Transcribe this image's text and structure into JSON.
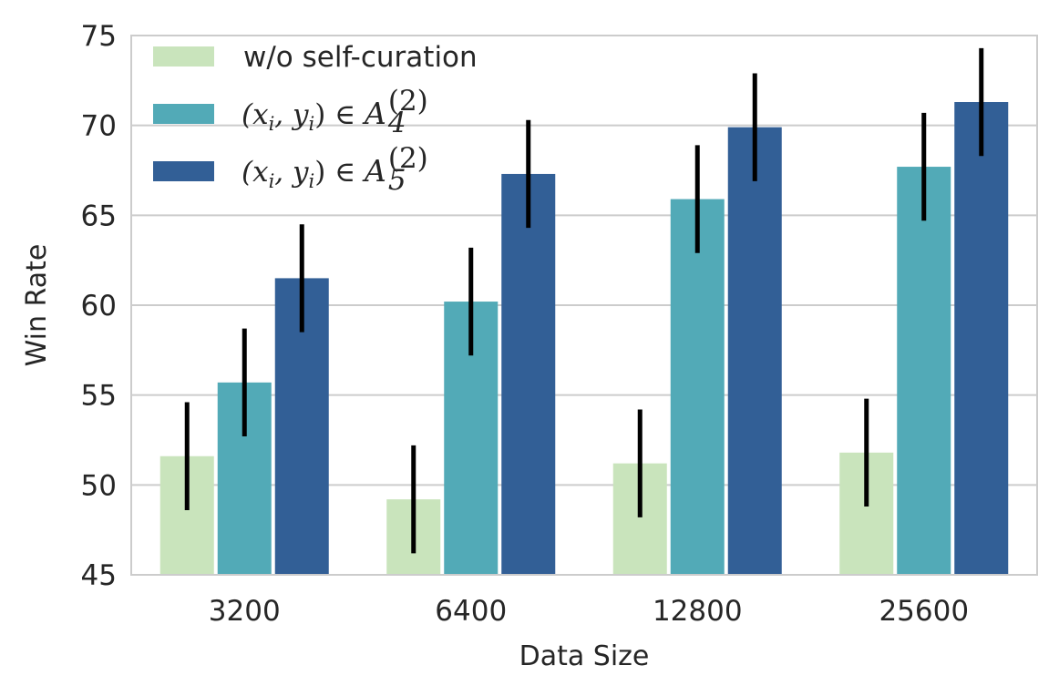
{
  "chart_data": {
    "type": "bar",
    "title": "",
    "xlabel": "Data Size",
    "ylabel": "Win Rate",
    "categories": [
      "3200",
      "6400",
      "12800",
      "25600"
    ],
    "ylim": [
      45,
      75
    ],
    "yticks": [
      45,
      50,
      55,
      60,
      65,
      70,
      75
    ],
    "grid": "horizontal",
    "legend_placement": "top-left",
    "series": [
      {
        "name": "w/o self-curation",
        "color": "#c9e4bc",
        "values": [
          51.6,
          49.2,
          51.2,
          51.8
        ],
        "error": [
          3.0,
          3.0,
          3.0,
          3.0
        ]
      },
      {
        "name": "(x_i, y_i) ∈ A_4^(2)",
        "legend_parts": {
          "lhs": "(x",
          "i": "i",
          "comma": ", y",
          "rhs": ") ∈ ",
          "set": "A",
          "sup": "(2)",
          "sub": "4"
        },
        "color": "#52aab7",
        "values": [
          55.7,
          60.2,
          65.9,
          67.7
        ],
        "error": [
          3.0,
          3.0,
          3.0,
          3.0
        ]
      },
      {
        "name": "(x_i, y_i) ∈ A_5^(2)",
        "legend_parts": {
          "lhs": "(x",
          "i": "i",
          "comma": ", y",
          "rhs": ") ∈ ",
          "set": "A",
          "sup": "(2)",
          "sub": "5"
        },
        "color": "#325f96",
        "values": [
          61.5,
          67.3,
          69.9,
          71.3
        ],
        "error": [
          3.0,
          3.0,
          3.0,
          3.0
        ]
      }
    ]
  }
}
